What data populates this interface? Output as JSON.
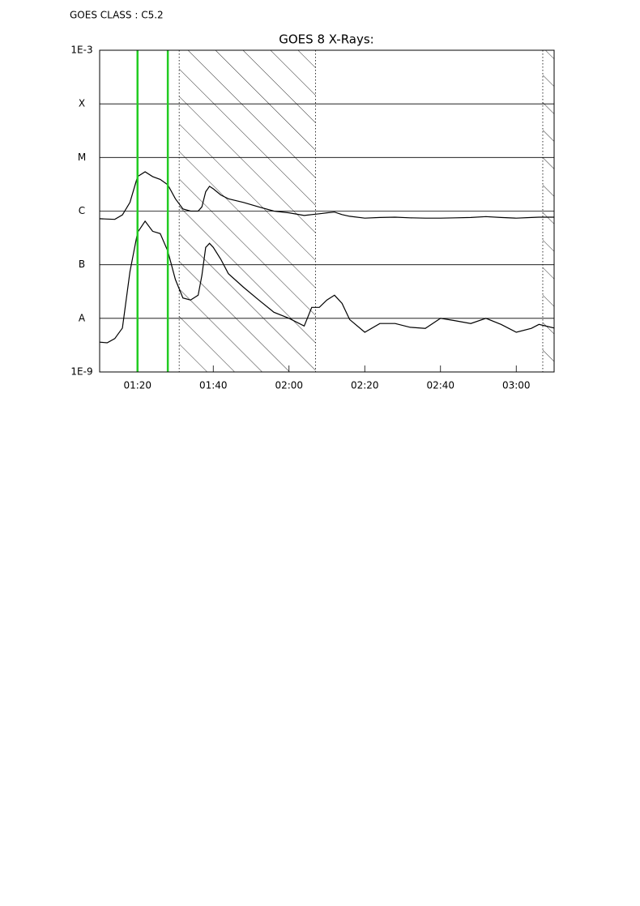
{
  "chart_data": {
    "type": "line",
    "header": "GOES CLASS : C5.2",
    "title": "GOES 8 X-Rays:",
    "x": [
      "01:10",
      "01:12",
      "01:14",
      "01:16",
      "01:18",
      "01:20",
      "01:22",
      "01:24",
      "01:26",
      "01:28",
      "01:30",
      "01:32",
      "01:34",
      "01:36",
      "01:37",
      "01:38",
      "01:39",
      "01:40",
      "01:42",
      "01:44",
      "01:48",
      "01:52",
      "01:56",
      "02:00",
      "02:04",
      "02:06",
      "02:08",
      "02:10",
      "02:12",
      "02:14",
      "02:16",
      "02:20",
      "02:24",
      "02:28",
      "02:32",
      "02:36",
      "02:40",
      "02:44",
      "02:48",
      "02:52",
      "02:56",
      "03:00",
      "03:04",
      "03:06",
      "03:10"
    ],
    "series": [
      {
        "color": "#000000",
        "values": [
          7.2e-07,
          7.1e-07,
          7e-07,
          8.5e-07,
          1.45e-06,
          4.4e-06,
          5.4e-06,
          4.4e-06,
          3.9e-06,
          3.1e-06,
          1.7e-06,
          1.1e-06,
          1e-06,
          1e-06,
          1.2e-06,
          2.3e-06,
          2.9e-06,
          2.6e-06,
          2e-06,
          1.7e-06,
          1.45e-06,
          1.2e-06,
          1e-06,
          9.3e-07,
          8.3e-07,
          8.6e-07,
          8.9e-07,
          9.3e-07,
          9.6e-07,
          8.6e-07,
          8e-07,
          7.4e-07,
          7.6e-07,
          7.7e-07,
          7.5e-07,
          7.4e-07,
          7.4e-07,
          7.5e-07,
          7.6e-07,
          7.9e-07,
          7.6e-07,
          7.4e-07,
          7.6e-07,
          7.7e-07,
          7.7e-07
        ]
      },
      {
        "color": "#000000",
        "values": [
          3.6e-09,
          3.5e-09,
          4.2e-09,
          6.6e-09,
          7.4e-08,
          4e-07,
          6.5e-07,
          4.2e-07,
          3.8e-07,
          1.8e-07,
          5.3e-08,
          2.4e-08,
          2.2e-08,
          2.7e-08,
          6.3e-08,
          2.1e-07,
          2.5e-07,
          2.1e-07,
          1.26e-07,
          6.8e-08,
          3.8e-08,
          2.2e-08,
          1.3e-08,
          1e-08,
          7.2e-09,
          1.6e-08,
          1.6e-08,
          2.2e-08,
          2.7e-08,
          1.9e-08,
          9.5e-09,
          5.5e-09,
          8e-09,
          8e-09,
          6.8e-09,
          6.5e-09,
          1e-08,
          9e-09,
          8e-09,
          1e-08,
          7.7e-09,
          5.5e-09,
          6.5e-09,
          7.7e-09,
          6.6e-09
        ]
      }
    ],
    "xlim": [
      "01:10",
      "03:10"
    ],
    "xticks": [
      "01:20",
      "01:40",
      "02:00",
      "02:20",
      "02:40",
      "03:00"
    ],
    "ylim": [
      1e-09,
      0.001
    ],
    "log_y": true,
    "yticks": [
      {
        "value": 1e-09,
        "label": "1E-9"
      },
      {
        "value": 1e-08,
        "label": "A"
      },
      {
        "value": 1e-07,
        "label": "B"
      },
      {
        "value": 1e-06,
        "label": "C"
      },
      {
        "value": 1e-05,
        "label": "M"
      },
      {
        "value": 0.0001,
        "label": "X"
      },
      {
        "value": 0.001,
        "label": "1E-3"
      }
    ],
    "grid": true,
    "vlines": [
      {
        "x": "01:20",
        "color": "#22cc22"
      },
      {
        "x": "01:28",
        "color": "#22cc22"
      }
    ],
    "shaded": [
      {
        "from": "01:31",
        "to": "02:07"
      },
      {
        "from": "03:07",
        "to": "03:10"
      }
    ]
  }
}
